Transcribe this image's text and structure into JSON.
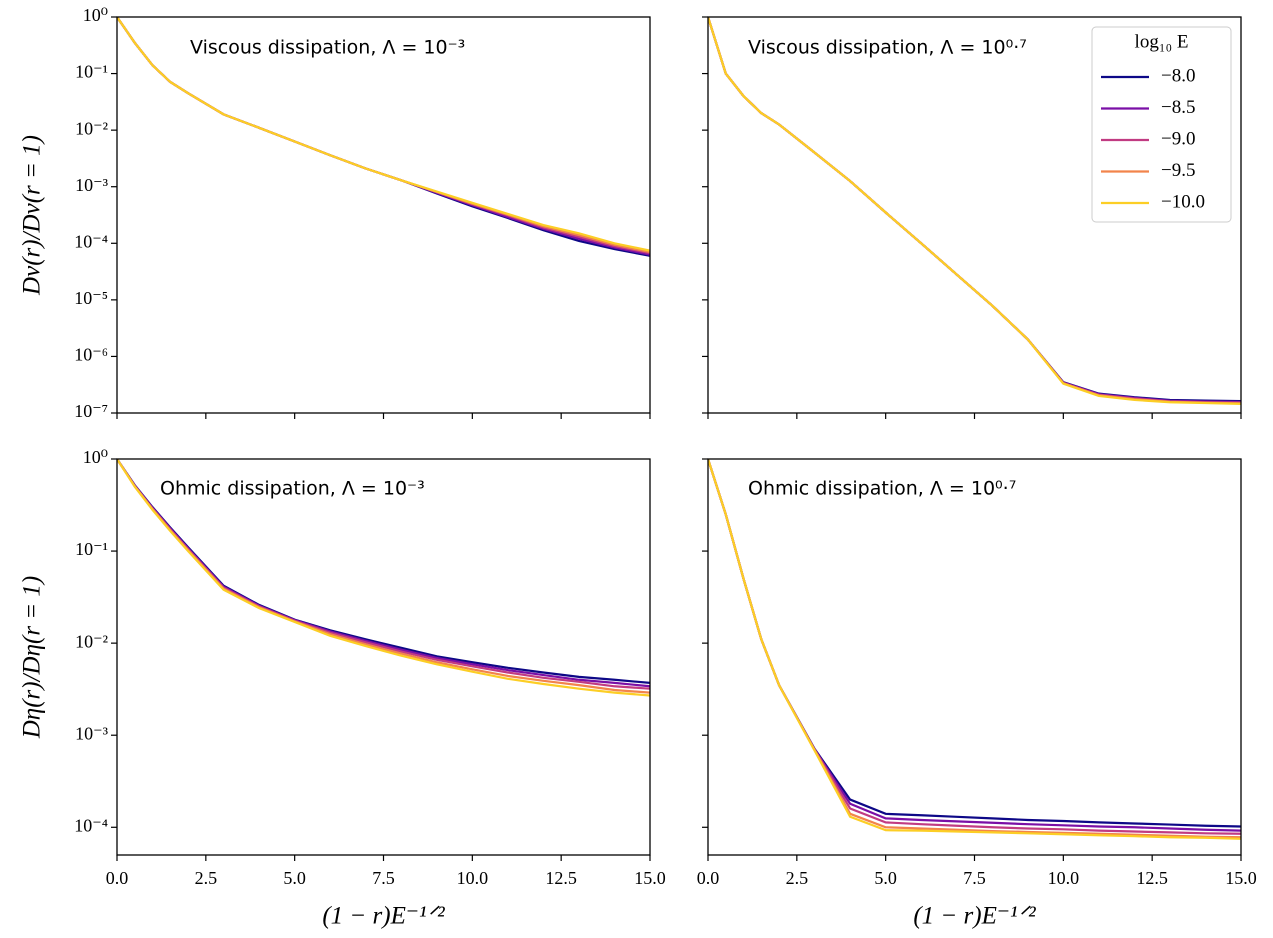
{
  "chart_data": [
    {
      "type": "line",
      "annotation": "Viscous dissipation, Λ = 10⁻³",
      "ylabel": "Dν(r)/Dν(r = 1)",
      "yscale": "log",
      "x": [
        0,
        0.5,
        1,
        1.5,
        2,
        3,
        4,
        5,
        6,
        7,
        8,
        9,
        10,
        11,
        12,
        13,
        14,
        15
      ],
      "xlim": [
        0,
        15
      ],
      "xticks": [
        0,
        2.5,
        5,
        7.5,
        10,
        12.5,
        15
      ],
      "ylim": [
        1e-07,
        1
      ],
      "yticks": [
        {
          "value": 1,
          "label": "10⁰"
        },
        {
          "value": 0.1,
          "label": "10⁻¹"
        },
        {
          "value": 0.01,
          "label": "10⁻²"
        },
        {
          "value": 0.001,
          "label": "10⁻³"
        },
        {
          "value": 0.0001,
          "label": "10⁻⁴"
        },
        {
          "value": 1e-05,
          "label": "10⁻⁵"
        },
        {
          "value": 1e-06,
          "label": "10⁻⁶"
        },
        {
          "value": 1e-07,
          "label": "10⁻⁷"
        }
      ],
      "series": [
        {
          "color": "#0d0887",
          "values": [
            1,
            0.35,
            0.14,
            0.071,
            0.045,
            0.019,
            0.011,
            0.0063,
            0.0036,
            0.0021,
            0.0013,
            0.00076,
            0.00045,
            0.00028,
            0.00017,
            0.00011,
            7.9e-05,
            6e-05
          ]
        },
        {
          "color": "#7a0fa6",
          "values": [
            1,
            0.35,
            0.14,
            0.071,
            0.045,
            0.019,
            0.011,
            0.0063,
            0.0036,
            0.0021,
            0.0013,
            0.00078,
            0.00047,
            0.00029,
            0.00018,
            0.00012,
            8.4e-05,
            6.3e-05
          ]
        },
        {
          "color": "#c13b82",
          "values": [
            1,
            0.35,
            0.14,
            0.071,
            0.045,
            0.019,
            0.011,
            0.0063,
            0.0036,
            0.0021,
            0.0013,
            0.0008,
            0.00049,
            0.00031,
            0.00019,
            0.00013,
            8.9e-05,
            6.7e-05
          ]
        },
        {
          "color": "#f2844b",
          "values": [
            1,
            0.35,
            0.14,
            0.071,
            0.045,
            0.019,
            0.011,
            0.0063,
            0.0036,
            0.0021,
            0.0013,
            0.00081,
            0.0005,
            0.00032,
            0.0002,
            0.00014,
            9.4e-05,
            7e-05
          ]
        },
        {
          "color": "#fcce25",
          "values": [
            1,
            0.35,
            0.14,
            0.071,
            0.045,
            0.019,
            0.011,
            0.0063,
            0.0036,
            0.0021,
            0.0013,
            0.00082,
            0.00052,
            0.00033,
            0.00021,
            0.00015,
            0.0001,
            7.4e-05
          ]
        }
      ]
    },
    {
      "type": "line",
      "annotation": "Viscous dissipation, Λ = 10⁰·⁷",
      "yscale": "log",
      "x": [
        0,
        0.5,
        1,
        1.5,
        2,
        3,
        4,
        5,
        6,
        7,
        8,
        9,
        10,
        11,
        12,
        13,
        14,
        15
      ],
      "xlim": [
        0,
        15
      ],
      "xticks": [
        0,
        2.5,
        5,
        7.5,
        10,
        12.5,
        15
      ],
      "ylim": [
        1e-07,
        1
      ],
      "yticks": [
        1,
        0.1,
        0.01,
        0.001,
        0.0001,
        1e-05,
        1e-06,
        1e-07
      ],
      "legend": "upper right",
      "legend_title": "log₁₀ E",
      "series": [
        {
          "name": "−8.0",
          "color": "#0d0887",
          "values": [
            1,
            0.1,
            0.04,
            0.02,
            0.0126,
            0.004,
            0.00126,
            0.00035,
            0.0001,
            2.8e-05,
            7.9e-06,
            2e-06,
            3.5e-07,
            2.2e-07,
            1.9e-07,
            1.7e-07,
            1.66e-07,
            1.62e-07
          ]
        },
        {
          "name": "−8.5",
          "color": "#7a0fa6",
          "values": [
            1,
            0.1,
            0.04,
            0.02,
            0.0126,
            0.004,
            0.00126,
            0.00035,
            0.0001,
            2.8e-05,
            7.9e-06,
            2e-06,
            3.45e-07,
            2.15e-07,
            1.85e-07,
            1.65e-07,
            1.6e-07,
            1.57e-07
          ]
        },
        {
          "name": "−9.0",
          "color": "#c13b82",
          "values": [
            1,
            0.1,
            0.04,
            0.02,
            0.0126,
            0.004,
            0.00126,
            0.00035,
            0.0001,
            2.8e-05,
            7.9e-06,
            2e-06,
            3.4e-07,
            2.1e-07,
            1.8e-07,
            1.6e-07,
            1.55e-07,
            1.52e-07
          ]
        },
        {
          "name": "−9.5",
          "color": "#f2844b",
          "values": [
            1,
            0.1,
            0.04,
            0.02,
            0.0126,
            0.004,
            0.00126,
            0.00035,
            0.0001,
            2.8e-05,
            7.9e-06,
            2e-06,
            3.35e-07,
            2.05e-07,
            1.75e-07,
            1.58e-07,
            1.52e-07,
            1.48e-07
          ]
        },
        {
          "name": "−10.0",
          "color": "#fcce25",
          "values": [
            1,
            0.1,
            0.04,
            0.02,
            0.0126,
            0.004,
            0.00126,
            0.00035,
            0.0001,
            2.8e-05,
            7.9e-06,
            2e-06,
            3.3e-07,
            2e-07,
            1.7e-07,
            1.55e-07,
            1.5e-07,
            1.45e-07
          ]
        }
      ]
    },
    {
      "type": "line",
      "annotation": "Ohmic dissipation, Λ = 10⁻³",
      "ylabel": "Dη(r)/Dη(r = 1)",
      "xlabel": "(1 − r)E⁻¹ᐟ²",
      "yscale": "log",
      "x": [
        0,
        0.5,
        1,
        1.5,
        2,
        3,
        4,
        5,
        6,
        7,
        8,
        9,
        10,
        11,
        12,
        13,
        14,
        15
      ],
      "xlim": [
        0,
        15
      ],
      "xticks": [
        {
          "value": 0,
          "label": "0.0"
        },
        {
          "value": 2.5,
          "label": "2.5"
        },
        {
          "value": 5,
          "label": "5.0"
        },
        {
          "value": 7.5,
          "label": "7.5"
        },
        {
          "value": 10,
          "label": "10.0"
        },
        {
          "value": 12.5,
          "label": "12.5"
        },
        {
          "value": 15,
          "label": "15.0"
        }
      ],
      "ylim": [
        5e-05,
        1
      ],
      "yticks": [
        {
          "value": 1,
          "label": "10⁰"
        },
        {
          "value": 0.1,
          "label": "10⁻¹"
        },
        {
          "value": 0.01,
          "label": "10⁻²"
        },
        {
          "value": 0.001,
          "label": "10⁻³"
        },
        {
          "value": 0.0001,
          "label": "10⁻⁴"
        }
      ],
      "series": [
        {
          "color": "#0d0887",
          "values": [
            1,
            0.52,
            0.3,
            0.18,
            0.11,
            0.042,
            0.026,
            0.018,
            0.0138,
            0.011,
            0.0089,
            0.0072,
            0.0062,
            0.0054,
            0.0048,
            0.0043,
            0.004,
            0.0037
          ]
        },
        {
          "color": "#7a0fa6",
          "values": [
            1,
            0.515,
            0.295,
            0.176,
            0.107,
            0.041,
            0.0255,
            0.0178,
            0.0134,
            0.0106,
            0.0085,
            0.0069,
            0.0059,
            0.0051,
            0.0045,
            0.004,
            0.0037,
            0.0034
          ]
        },
        {
          "color": "#c13b82",
          "values": [
            1,
            0.51,
            0.29,
            0.172,
            0.105,
            0.04,
            0.025,
            0.0175,
            0.013,
            0.0102,
            0.0081,
            0.0066,
            0.0056,
            0.0048,
            0.0042,
            0.0038,
            0.0034,
            0.0032
          ]
        },
        {
          "color": "#f2844b",
          "values": [
            1,
            0.505,
            0.285,
            0.168,
            0.102,
            0.039,
            0.0245,
            0.0172,
            0.0125,
            0.0097,
            0.0077,
            0.0062,
            0.0052,
            0.0044,
            0.0039,
            0.0035,
            0.0031,
            0.0029
          ]
        },
        {
          "color": "#fcce25",
          "values": [
            1,
            0.5,
            0.28,
            0.165,
            0.1,
            0.038,
            0.024,
            0.017,
            0.012,
            0.0093,
            0.0073,
            0.0059,
            0.0049,
            0.0041,
            0.0036,
            0.0032,
            0.0029,
            0.0027
          ]
        }
      ]
    },
    {
      "type": "line",
      "annotation": "Ohmic dissipation, Λ = 10⁰·⁷",
      "xlabel": "(1 − r)E⁻¹ᐟ²",
      "yscale": "log",
      "x": [
        0,
        0.5,
        1,
        1.5,
        2,
        3,
        4,
        5,
        6,
        7,
        8,
        9,
        10,
        11,
        12,
        13,
        14,
        15
      ],
      "xlim": [
        0,
        15
      ],
      "xticks": [
        {
          "value": 0,
          "label": "0.0"
        },
        {
          "value": 2.5,
          "label": "2.5"
        },
        {
          "value": 5,
          "label": "5.0"
        },
        {
          "value": 7.5,
          "label": "7.5"
        },
        {
          "value": 10,
          "label": "10.0"
        },
        {
          "value": 12.5,
          "label": "12.5"
        },
        {
          "value": 15,
          "label": "15.0"
        }
      ],
      "ylim": [
        5e-05,
        1
      ],
      "yticks": [
        1,
        0.1,
        0.01,
        0.001,
        0.0001
      ],
      "series": [
        {
          "color": "#0d0887",
          "values": [
            1,
            0.25,
            0.05,
            0.011,
            0.0035,
            0.00071,
            0.0002,
            0.00014,
            0.000135,
            0.00013,
            0.000125,
            0.00012,
            0.000117,
            0.000113,
            0.00011,
            0.000107,
            0.000104,
            0.000102
          ]
        },
        {
          "color": "#7a0fa6",
          "values": [
            1,
            0.25,
            0.05,
            0.011,
            0.0035,
            0.0007,
            0.00018,
            0.000125,
            0.00012,
            0.000116,
            0.000112,
            0.000108,
            0.000105,
            0.000102,
            0.0001,
            9.7e-05,
            9.4e-05,
            9.2e-05
          ]
        },
        {
          "color": "#c13b82",
          "values": [
            1,
            0.25,
            0.05,
            0.011,
            0.0035,
            0.0007,
            0.00016,
            0.000113,
            0.000108,
            0.000104,
            0.0001,
            9.7e-05,
            9.5e-05,
            9.2e-05,
            9e-05,
            8.8e-05,
            8.6e-05,
            8.5e-05
          ]
        },
        {
          "color": "#f2844b",
          "values": [
            1,
            0.25,
            0.05,
            0.011,
            0.0035,
            0.00069,
            0.00014,
            0.0001,
            9.7e-05,
            9.4e-05,
            9.1e-05,
            8.9e-05,
            8.7e-05,
            8.5e-05,
            8.3e-05,
            8.1e-05,
            7.9e-05,
            7.8e-05
          ]
        },
        {
          "color": "#fcce25",
          "values": [
            1,
            0.25,
            0.05,
            0.011,
            0.0035,
            0.00068,
            0.00013,
            9.3e-05,
            9.2e-05,
            9e-05,
            8.8e-05,
            8.6e-05,
            8.4e-05,
            8.2e-05,
            8e-05,
            7.8e-05,
            7.7e-05,
            7.5e-05
          ]
        }
      ]
    }
  ]
}
